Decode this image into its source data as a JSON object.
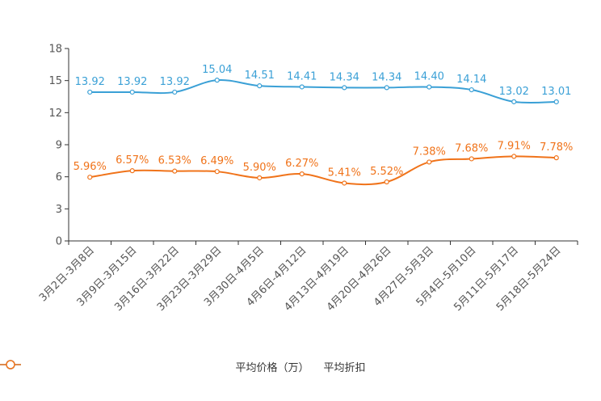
{
  "chart_data": {
    "type": "line",
    "title": "",
    "xlabel": "",
    "ylabel": "",
    "ylim": [
      0,
      18
    ],
    "yticks": [
      0,
      3,
      6,
      9,
      12,
      15,
      18
    ],
    "grid": false,
    "legend_position": "bottom-center",
    "categories": [
      "3月2日-3月8日",
      "3月9日-3月15日",
      "3月16日-3月22日",
      "3月23日-3月29日",
      "3月30日-4月5日",
      "4月6日-4月12日",
      "4月13日-4月19日",
      "4月20日-4月26日",
      "4月27日-5月3日",
      "5月4日-5月10日",
      "5月11日-5月17日",
      "5月18日-5月24日"
    ],
    "series": [
      {
        "name": "平均价格（万）",
        "color": "#3aa0d6",
        "values": [
          13.92,
          13.92,
          13.92,
          15.04,
          14.51,
          14.41,
          14.34,
          14.34,
          14.4,
          14.14,
          13.02,
          13.01
        ],
        "labels": [
          "13.92",
          "13.92",
          "13.92",
          "15.04",
          "14.51",
          "14.41",
          "14.34",
          "14.34",
          "14.40",
          "14.14",
          "13.02",
          "13.01"
        ]
      },
      {
        "name": "平均折扣",
        "color": "#f0731a",
        "values": [
          5.96,
          6.57,
          6.53,
          6.49,
          5.9,
          6.27,
          5.41,
          5.52,
          7.38,
          7.68,
          7.91,
          7.78
        ],
        "labels": [
          "5.96%",
          "6.57%",
          "6.53%",
          "6.49%",
          "5.90%",
          "6.27%",
          "5.41%",
          "5.52%",
          "7.38%",
          "7.68%",
          "7.91%",
          "7.78%"
        ]
      }
    ]
  }
}
